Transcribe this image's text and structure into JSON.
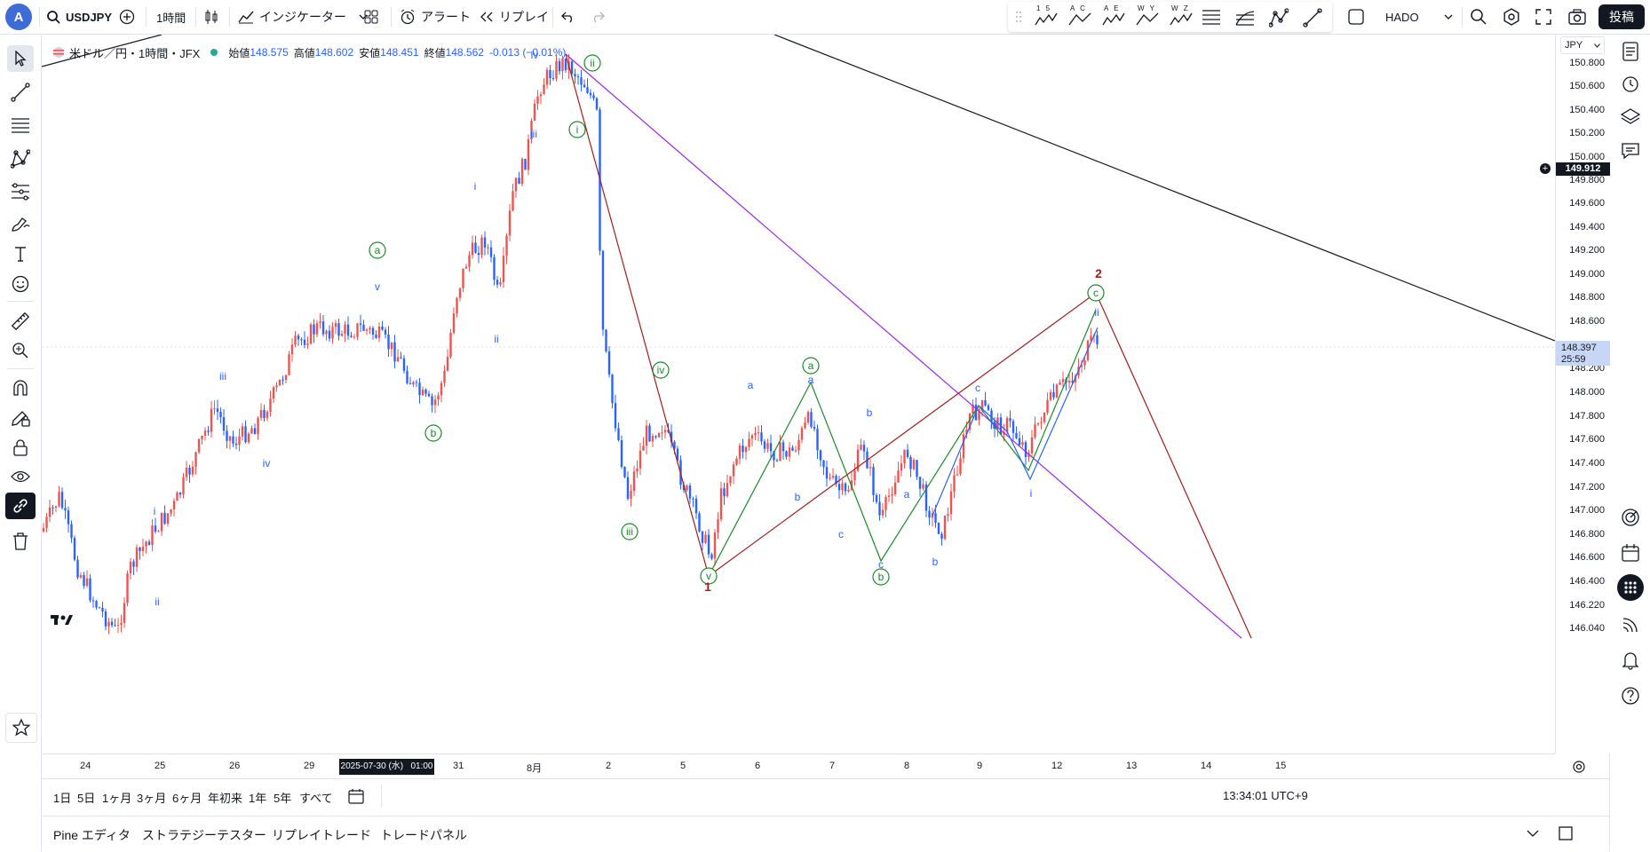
{
  "topbar": {
    "avatar_letter": "A",
    "symbol": "USDJPY",
    "timeframe": "1時間",
    "indicators_label": "インジケーター",
    "alert_label": "アラート",
    "replay_label": "リプレイ",
    "pattern_labels": [
      "1 5",
      "A C",
      "A E",
      "W Y",
      "W Z"
    ],
    "template_label": "HADO",
    "post_label": "投稿"
  },
  "legend": {
    "title": "米ドル／円・1時間・JFX",
    "open_label": "始値",
    "open": "148.575",
    "high_label": "高値",
    "high": "148.602",
    "low_label": "安値",
    "low": "148.451",
    "close_label": "終値",
    "close": "148.562",
    "change": "-0.013 (−0.01%)"
  },
  "price_scale": {
    "currency": "JPY",
    "labels": [
      "150.800",
      "150.600",
      "150.400",
      "150.200",
      "150.000",
      "149.800",
      "149.600",
      "149.400",
      "149.200",
      "149.000",
      "148.800",
      "148.600",
      "148.200",
      "148.000",
      "147.800",
      "147.600",
      "147.400",
      "147.200",
      "147.000",
      "146.800",
      "146.600",
      "146.400",
      "146.220",
      "146.040"
    ],
    "crosshair_price": "149.912",
    "current_price": "148.397",
    "countdown": "25:59"
  },
  "time_scale": {
    "labels": [
      "24",
      "25",
      "26",
      "29",
      "31",
      "8月",
      "2",
      "5",
      "6",
      "7",
      "8",
      "9",
      "12",
      "13",
      "14",
      "15"
    ],
    "cursor_label": "2025-07-30 (水)   01:00"
  },
  "range_bar": {
    "items": [
      "1日",
      "5日",
      "1ヶ月",
      "3ヶ月",
      "6ヶ月",
      "年初来",
      "1年",
      "5年",
      "すべて"
    ],
    "clock": "13:34:01 UTC+9"
  },
  "bottom_tabs": [
    "Pine エディタ",
    "ストラテジーテスター",
    "リプレイトレード",
    "トレードパネル"
  ],
  "wave_labels": {
    "green": [
      "a",
      "b",
      "ii",
      "i",
      "iii",
      "iv",
      "v",
      "a",
      "b",
      "c"
    ],
    "blue": [
      "v",
      "iii",
      "iv",
      "i",
      "ii",
      "i",
      "ii",
      "iii",
      "iv",
      "a",
      "b",
      "c",
      "a",
      "b",
      "c",
      "a",
      "b",
      "c",
      "i",
      "ii",
      "iii",
      "iv",
      "v"
    ],
    "red": [
      "1",
      "2"
    ]
  },
  "colors": {
    "bull": "#ef5350",
    "bear": "#2962ff",
    "wave_green": "#1b8a2a",
    "wave_blue": "#2962ff",
    "wave_red": "#a51c1c",
    "line_purple": "#9c27f0",
    "line_dark": "#131722",
    "accent": "#2962ff"
  }
}
